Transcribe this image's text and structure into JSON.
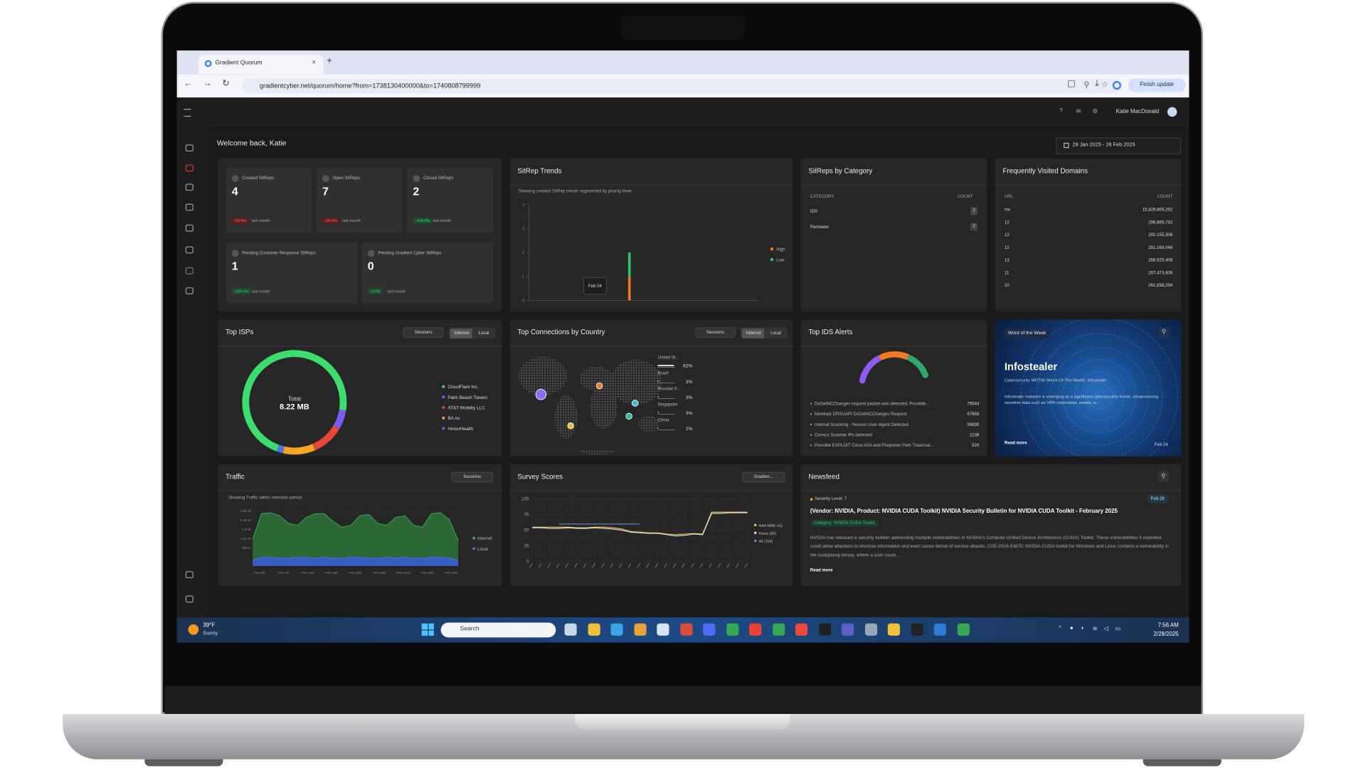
{
  "browser": {
    "tab_title": "Gradient Quorum",
    "url": "gradientcyber.net/quorum/home?from=1738130400000&to=1740808799999",
    "finish_update": "Finish update"
  },
  "header": {
    "user": "Katie MacDonald"
  },
  "welcome": "Welcome back, Katie",
  "date_range": "29 Jan 2025 - 28 Feb 2025",
  "stats": {
    "period": "last month",
    "items": [
      {
        "label": "Created SitReps",
        "value": 4,
        "change": "↓50.0%",
        "trend": "down"
      },
      {
        "label": "Open SitReps",
        "value": 7,
        "change": "↓36.4%",
        "trend": "down"
      },
      {
        "label": "Closed SitReps",
        "value": 2,
        "change": "↑100.0%",
        "trend": "up"
      },
      {
        "label": "Pending Customer Response SitReps",
        "value": 1,
        "change": "↑100.0%",
        "trend": "up"
      },
      {
        "label": "Pending Gradient Cyber SitReps",
        "value": 0,
        "change": "↑0.0%",
        "trend": "up"
      }
    ]
  },
  "sitrep_trends": {
    "title": "SitRep Trends",
    "subtitle": "Showing created SitRep trends segmented by priority level",
    "tooltip": "Feb 04",
    "ylim": [
      0,
      4
    ],
    "yticks": [
      0,
      1,
      2,
      3,
      4
    ],
    "series": [
      {
        "name": "High",
        "color": "#f07b26",
        "values": [
          1
        ]
      },
      {
        "name": "Low",
        "color": "#2fc46a",
        "values": [
          1
        ]
      }
    ]
  },
  "category": {
    "title": "SitReps by Category",
    "headers": [
      "CATEGORY",
      "COUNT"
    ],
    "rows": [
      [
        "IDS",
        2
      ],
      [
        "Perimeter",
        2
      ]
    ]
  },
  "domains": {
    "title": "Frequently Visited Domains",
    "headers": [
      "URL",
      "COUNT"
    ],
    "rows": [
      [
        "ms",
        "15,829,869,262"
      ],
      [
        "12",
        "298,865,742"
      ],
      [
        "12",
        "292,155,306"
      ],
      [
        "12",
        "281,169,046"
      ],
      [
        "13",
        "268,925,408"
      ],
      [
        "11",
        "267,473,606"
      ],
      [
        "10",
        "261,938,294"
      ]
    ]
  },
  "isps": {
    "title": "Top ISPs",
    "controls": [
      "Sessions",
      "Internet",
      "Local"
    ],
    "total_label": "Total",
    "total": "8.22 MB",
    "segments": [
      {
        "name": "CloudFlare Inc.",
        "color": "#3ddc6f",
        "value": 72
      },
      {
        "name": "Palm Beach Towers",
        "color": "#7a5af0",
        "value": 6
      },
      {
        "name": "AT&T Mobility LLC",
        "color": "#e8453c",
        "value": 10
      },
      {
        "name": "BA.nu",
        "color": "#f5a623",
        "value": 10
      },
      {
        "name": "HonorHealth",
        "color": "#4a78e0",
        "value": 2
      }
    ]
  },
  "connections": {
    "title": "Top Connections by Country",
    "controls": [
      "Sessions",
      "Internet",
      "Local"
    ],
    "rows": [
      {
        "name": "United St...",
        "value": 62,
        "label": "62%"
      },
      {
        "name": "Brazil",
        "value": 3,
        "label": "3%"
      },
      {
        "name": "Russian F...",
        "value": 3,
        "label": "3%"
      },
      {
        "name": "Singapore",
        "value": 3,
        "label": "3%"
      },
      {
        "name": "China",
        "value": 2,
        "label": "2%"
      }
    ]
  },
  "ids": {
    "title": "Top IDS Alerts",
    "rows": [
      [
        "DsGetNCChanges request packet was detected. Possible...",
        "79544"
      ],
      [
        "Mimikatz DRSUAPI DsGetNCChanges Request",
        "67658"
      ],
      [
        "Internal Scanning - Nessus User-Agent Detected",
        "50630"
      ],
      [
        "Census Scanner IPs detected",
        "2138"
      ],
      [
        "Possible EXPLOIT Cisco ASA and Firepower Path Traversal...",
        "520"
      ]
    ]
  },
  "word": {
    "badge": "Word of the Week",
    "term": "Infostealer",
    "subtitle": "Cybersecurity WOTW (Word-Of-The-Week): Infostealer",
    "text": "Infostealer malware is emerging as a significant cybersecurity threat, compromising sensitive data such as VPN credentials, emails, a...",
    "read_more": "Read more",
    "date": "Feb 24"
  },
  "traffic": {
    "title": "Traffic",
    "control": "Sessions",
    "subtitle": "Showing Traffic within retention period",
    "ylim": [
      0,
      3.1
    ],
    "yticks": [
      {
        "value": 0.95,
        "label": "950 K"
      },
      {
        "value": 1.43,
        "label": "1.43 M"
      },
      {
        "value": 1.9,
        "label": "1.9 M"
      },
      {
        "value": 2.38,
        "label": "2.38 M"
      },
      {
        "value": 2.85,
        "label": "2.85 M"
      }
    ],
    "x_labels": [
      "Feb 5th",
      "Feb 7th",
      "Feb 10th",
      "Feb 13th",
      "Feb 16th",
      "Feb 19th",
      "Feb 22nd",
      "Feb 25th",
      "Feb 28th"
    ],
    "series": [
      {
        "name": "Internet",
        "color": "#2f7d3c",
        "values": [
          1.4,
          2.7,
          2.75,
          2.6,
          2.2,
          2.1,
          2.5,
          2.7,
          2.7,
          2.3,
          2.0,
          2.1,
          2.6,
          2.65,
          2.2,
          2.1,
          2.5,
          2.6,
          2.1,
          2.0,
          2.7,
          2.75,
          2.4,
          1.3
        ]
      },
      {
        "name": "Local",
        "color": "#3b5bdb",
        "values": [
          0.3,
          0.45,
          0.45,
          0.4,
          0.4,
          0.45,
          0.45,
          0.4,
          0.45,
          0.4,
          0.4,
          0.45,
          0.45,
          0.4,
          0.4,
          0.45,
          0.4,
          0.45,
          0.4,
          0.4,
          0.45,
          0.45,
          0.4,
          0.3
        ]
      }
    ]
  },
  "survey": {
    "title": "Survey Scores",
    "control": "Gradien...",
    "ylim": [
      0,
      100
    ],
    "yticks": [
      0,
      25,
      50,
      75,
      100
    ],
    "categories": [
      null,
      null,
      null,
      null,
      null,
      null,
      null,
      null,
      null,
      null,
      null,
      null,
      null,
      null,
      null,
      null,
      null,
      null,
      null,
      null,
      null,
      null,
      null,
      null,
      null
    ],
    "series": [
      {
        "name": "AAA MME HQ",
        "color": "#f2c94c",
        "values": [
          55,
          55,
          55,
          55,
          55,
          54,
          54,
          55,
          55,
          54,
          52,
          48,
          47,
          46,
          46,
          44,
          43,
          44,
          45,
          44,
          79,
          79,
          79,
          79,
          79
        ]
      },
      {
        "name": "Peers (83)",
        "color": "#e6e6e6",
        "values": [
          54,
          54,
          53,
          53,
          54,
          53,
          53,
          54,
          53,
          52,
          50,
          47,
          46,
          45,
          45,
          43,
          41,
          42,
          44,
          43,
          77,
          77,
          78,
          78,
          78
        ]
      },
      {
        "name": "All (154)",
        "color": "#6b86e0",
        "values": [
          null,
          null,
          null,
          60,
          60,
          60,
          60,
          60,
          60,
          60,
          60,
          60,
          60,
          null,
          null,
          null,
          null,
          null,
          null,
          null,
          null,
          null,
          null,
          null,
          null
        ]
      }
    ]
  },
  "newsfeed": {
    "title": "Newsfeed",
    "severity": "Severity Level: 7",
    "date": "Feb 28",
    "headline": "(Vendor: NVIDIA, Product: NVIDIA CUDA Toolkit) NVIDIA Security Bulletin for NVIDIA CUDA Toolkit - February 2025",
    "category": "Category: NVIDIA CUDA Toolkit",
    "body": "NVIDIA has released a security bulletin addressing multiple vulnerabilities in NVIDIA's Compute Unified Device Architecture (CUDA) Toolkit. These vulnerabilities if exploited could allow attackers to disclose information and even cause denial of service attacks. CVE-2024-53870: NVIDIA CUDA toolkit for Windows and Linux contains a vulnerability in the cuobjdump binary, where a user could...",
    "read_more": "Read more"
  },
  "taskbar": {
    "temp": "39°F",
    "weather": "Sunny",
    "search": "Search",
    "time": "7:56 AM",
    "date": "2/28/2025"
  }
}
